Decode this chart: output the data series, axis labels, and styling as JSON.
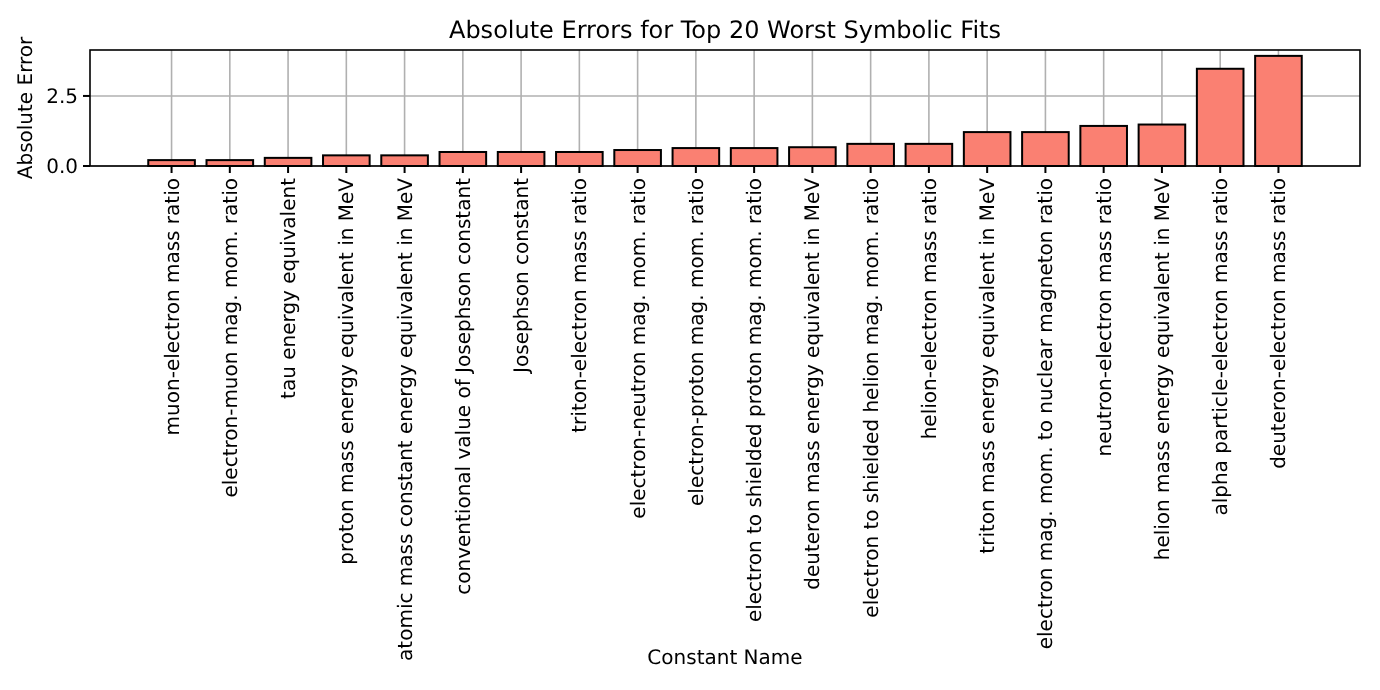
{
  "chart_data": {
    "type": "bar",
    "title": "Absolute Errors for Top 20 Worst Symbolic Fits",
    "xlabel": "Constant Name",
    "ylabel": "Absolute Error",
    "categories": [
      "muon-electron mass ratio",
      "electron-muon mag. mom. ratio",
      "tau energy equivalent",
      "proton mass energy equivalent in MeV",
      "atomic mass constant energy equivalent in MeV",
      "conventional value of Josephson constant",
      "Josephson constant",
      "triton-electron mass ratio",
      "electron-neutron mag. mom. ratio",
      "electron-proton mag. mom. ratio",
      "electron to shielded proton mag. mom. ratio",
      "deuteron mass energy equivalent in MeV",
      "electron to shielded helion mag. mom. ratio",
      "helion-electron mass ratio",
      "triton mass energy equivalent in MeV",
      "electron mag. mom. to nuclear magneton ratio",
      "neutron-electron mass ratio",
      "helion mass energy equivalent in MeV",
      "alpha particle-electron mass ratio",
      "deuteron-electron mass ratio"
    ],
    "values": [
      0.21,
      0.21,
      0.29,
      0.38,
      0.38,
      0.5,
      0.5,
      0.5,
      0.57,
      0.64,
      0.64,
      0.67,
      0.79,
      0.79,
      1.21,
      1.21,
      1.43,
      1.48,
      3.47,
      3.93
    ],
    "color": "#fa8072",
    "ylim": [
      0,
      4.14
    ],
    "yticks": [
      {
        "value": 0,
        "label": "0.0"
      },
      {
        "value": 2.5,
        "label": "2.5"
      }
    ],
    "grid": true
  }
}
